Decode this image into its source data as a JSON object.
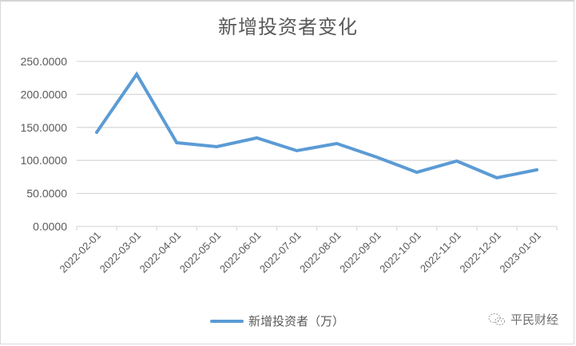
{
  "chart_data": {
    "type": "line",
    "title": "新增投资者变化",
    "xlabel": "",
    "ylabel": "",
    "ylim": [
      0,
      250
    ],
    "yticks": [
      "0.0000",
      "50.0000",
      "100.0000",
      "150.0000",
      "200.0000",
      "250.0000"
    ],
    "grid": true,
    "legend_position": "bottom",
    "categories": [
      "2022-02-01",
      "2022-03-01",
      "2022-04-01",
      "2022-05-01",
      "2022-06-01",
      "2022-07-01",
      "2022-08-01",
      "2022-09-01",
      "2022-10-01",
      "2022-11-01",
      "2022-12-01",
      "2023-01-01"
    ],
    "series": [
      {
        "name": "新增投资者（万）",
        "color": "#5b9bd5",
        "values": [
          142.5,
          230.6,
          126.8,
          120.8,
          134.0,
          114.7,
          125.6,
          105.0,
          82.0,
          99.0,
          73.7,
          85.7
        ]
      }
    ]
  },
  "watermark": {
    "icon": "wechat-icon",
    "text": "平民财经"
  }
}
